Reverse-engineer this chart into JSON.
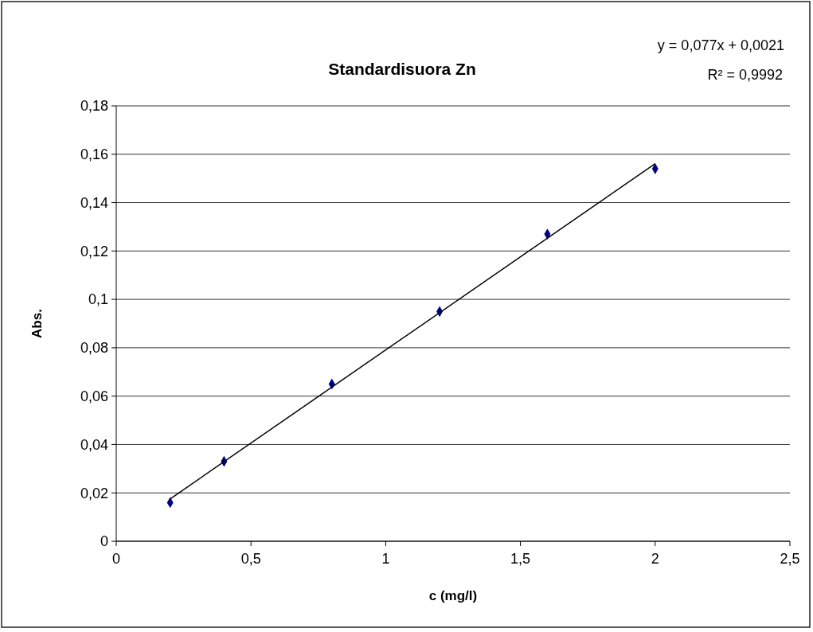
{
  "chart_data": {
    "type": "scatter",
    "title": "Standardisuora Zn",
    "xlabel": "c (mg/l)",
    "ylabel": "Abs.",
    "annotations": [
      "y = 0,077x + 0,0021",
      "R² = 0,9992"
    ],
    "series": [
      {
        "color": "#000080",
        "x": [
          0.2,
          0.4,
          0.8,
          1.2,
          1.6,
          2
        ],
        "values": [
          0.016,
          0.033,
          0.065,
          0.095,
          0.127,
          0.154
        ]
      },
      {
        "type": "line",
        "color": "#000000",
        "marker": "none",
        "x": [
          0.2,
          2
        ],
        "values": [
          0.0175,
          0.1561
        ]
      }
    ],
    "xlim": [
      0,
      2.5
    ],
    "xticks": [
      0,
      {
        "value": 0.5,
        "label": "0,5"
      },
      1,
      {
        "value": 1.5,
        "label": "1,5"
      },
      2,
      {
        "value": 2.5,
        "label": "2,5"
      }
    ],
    "ylim": [
      0,
      0.18
    ],
    "yticks": [
      0,
      {
        "value": 0.02,
        "label": "0,02"
      },
      {
        "value": 0.04,
        "label": "0,04"
      },
      {
        "value": 0.06,
        "label": "0,06"
      },
      {
        "value": 0.08,
        "label": "0,08"
      },
      {
        "value": 0.1,
        "label": "0,1"
      },
      {
        "value": 0.12,
        "label": "0,12"
      },
      {
        "value": 0.14,
        "label": "0,14"
      },
      {
        "value": 0.16,
        "label": "0,16"
      },
      {
        "value": 0.18,
        "label": "0,18"
      }
    ],
    "grid": "y",
    "marker": "diamond",
    "line_style": "solid"
  }
}
